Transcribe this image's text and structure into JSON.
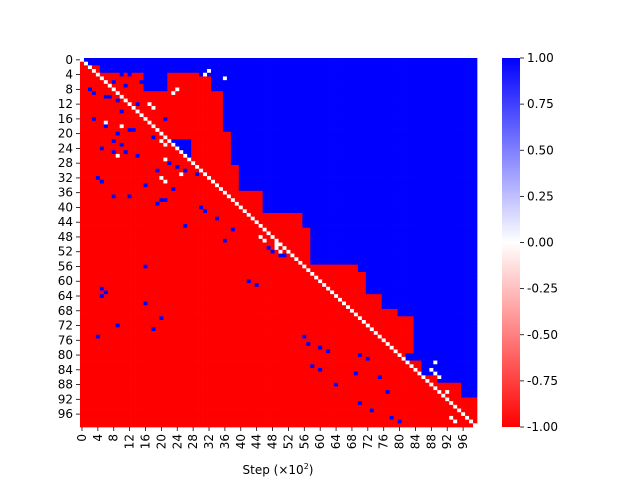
{
  "chart_data": {
    "type": "heatmap",
    "title": "",
    "xlabel": "Step (×10",
    "xlabel_exponent": "2",
    "xlabel_suffix": ")",
    "ylabel": "",
    "n": 100,
    "row_tick_labels": [
      "0",
      "4",
      "8",
      "12",
      "16",
      "20",
      "24",
      "28",
      "32",
      "36",
      "40",
      "44",
      "48",
      "52",
      "56",
      "60",
      "64",
      "68",
      "72",
      "76",
      "80",
      "84",
      "88",
      "92",
      "96"
    ],
    "col_tick_labels": [
      "0",
      "4",
      "8",
      "12",
      "16",
      "20",
      "24",
      "28",
      "32",
      "36",
      "40",
      "44",
      "48",
      "52",
      "56",
      "60",
      "64",
      "68",
      "72",
      "76",
      "80",
      "84",
      "88",
      "92",
      "96"
    ],
    "value_range": [
      -1.0,
      1.0
    ],
    "diagonal_value": 0.0,
    "upper_triangle_default": 1.0,
    "lower_triangle_default": -1.0,
    "colormap": {
      "low": "#ff0000",
      "mid": "#ffffff",
      "high": "#0000ff"
    },
    "colorbar_ticks": [
      "-1.00",
      "-0.75",
      "-0.50",
      "-0.25",
      "0.00",
      "0.25",
      "0.50",
      "0.75",
      "1.00"
    ],
    "colorbar_values": [
      -1.0,
      -0.75,
      -0.5,
      -0.25,
      0.0,
      0.25,
      0.5,
      0.75,
      1.0
    ],
    "red_regions": [
      [
        2,
        5,
        0,
        5
      ],
      [
        4,
        10,
        4,
        16
      ],
      [
        7,
        22,
        6,
        12
      ],
      [
        9,
        22,
        12,
        27
      ],
      [
        4,
        9,
        22,
        30
      ],
      [
        9,
        22,
        22,
        36
      ],
      [
        5,
        22,
        28,
        33
      ],
      [
        20,
        34,
        28,
        38
      ],
      [
        29,
        39,
        28,
        40
      ],
      [
        36,
        44,
        38,
        46
      ],
      [
        42,
        52,
        40,
        56
      ],
      [
        46,
        56,
        48,
        58
      ],
      [
        56,
        66,
        56,
        70
      ],
      [
        58,
        66,
        70,
        72
      ],
      [
        64,
        76,
        60,
        76
      ],
      [
        68,
        80,
        74,
        80
      ],
      [
        70,
        80,
        76,
        84
      ],
      [
        80,
        100,
        78,
        82
      ],
      [
        82,
        100,
        82,
        86
      ],
      [
        86,
        100,
        86,
        90
      ],
      [
        88,
        100,
        90,
        96
      ],
      [
        92,
        100,
        94,
        100
      ],
      [
        74,
        82,
        80,
        82
      ],
      [
        72,
        74,
        60,
        62
      ]
    ],
    "blue_cells": [
      [
        4,
        10
      ],
      [
        4,
        12
      ],
      [
        6,
        8
      ],
      [
        6,
        15
      ],
      [
        7,
        11
      ],
      [
        8,
        2
      ],
      [
        9,
        3
      ],
      [
        10,
        6
      ],
      [
        10,
        7
      ],
      [
        11,
        9
      ],
      [
        12,
        14
      ],
      [
        14,
        10
      ],
      [
        16,
        3
      ],
      [
        16,
        21
      ],
      [
        18,
        6
      ],
      [
        19,
        12
      ],
      [
        19,
        13
      ],
      [
        20,
        9
      ],
      [
        21,
        18
      ],
      [
        22,
        8
      ],
      [
        23,
        10
      ],
      [
        24,
        5
      ],
      [
        25,
        8
      ],
      [
        25,
        11
      ],
      [
        26,
        14
      ],
      [
        28,
        22
      ],
      [
        29,
        24
      ],
      [
        30,
        19
      ],
      [
        30,
        26
      ],
      [
        31,
        29
      ],
      [
        32,
        4
      ],
      [
        33,
        5
      ],
      [
        34,
        16
      ],
      [
        35,
        23
      ],
      [
        37,
        8
      ],
      [
        37,
        12
      ],
      [
        38,
        20
      ],
      [
        38,
        21
      ],
      [
        39,
        19
      ],
      [
        40,
        30
      ],
      [
        41,
        31
      ],
      [
        43,
        34
      ],
      [
        45,
        26
      ],
      [
        46,
        38
      ],
      [
        49,
        36
      ],
      [
        51,
        47
      ],
      [
        52,
        48
      ],
      [
        53,
        50
      ],
      [
        53,
        51
      ],
      [
        56,
        16
      ],
      [
        60,
        42
      ],
      [
        61,
        44
      ],
      [
        62,
        5
      ],
      [
        63,
        6
      ],
      [
        64,
        5
      ],
      [
        66,
        16
      ],
      [
        70,
        20
      ],
      [
        72,
        9
      ],
      [
        73,
        18
      ],
      [
        75,
        4
      ],
      [
        75,
        56
      ],
      [
        77,
        57
      ],
      [
        78,
        60
      ],
      [
        79,
        62
      ],
      [
        80,
        70
      ],
      [
        81,
        72
      ],
      [
        83,
        58
      ],
      [
        84,
        60
      ],
      [
        85,
        69
      ],
      [
        86,
        75
      ],
      [
        88,
        64
      ],
      [
        90,
        77
      ],
      [
        93,
        70
      ],
      [
        95,
        73
      ],
      [
        97,
        78
      ],
      [
        98,
        80
      ]
    ],
    "white_cells": [
      [
        3,
        32
      ],
      [
        4,
        31
      ],
      [
        5,
        36
      ],
      [
        8,
        24
      ],
      [
        9,
        23
      ],
      [
        12,
        17
      ],
      [
        13,
        18
      ],
      [
        17,
        6
      ],
      [
        18,
        10
      ],
      [
        22,
        20
      ],
      [
        23,
        21
      ],
      [
        26,
        9
      ],
      [
        27,
        21
      ],
      [
        31,
        25
      ],
      [
        32,
        20
      ],
      [
        33,
        21
      ],
      [
        48,
        45
      ],
      [
        49,
        46
      ],
      [
        50,
        49
      ],
      [
        51,
        49
      ],
      [
        52,
        50
      ],
      [
        82,
        89
      ],
      [
        84,
        88
      ],
      [
        85,
        89
      ],
      [
        86,
        90
      ],
      [
        90,
        92
      ],
      [
        97,
        93
      ],
      [
        98,
        94
      ]
    ]
  }
}
